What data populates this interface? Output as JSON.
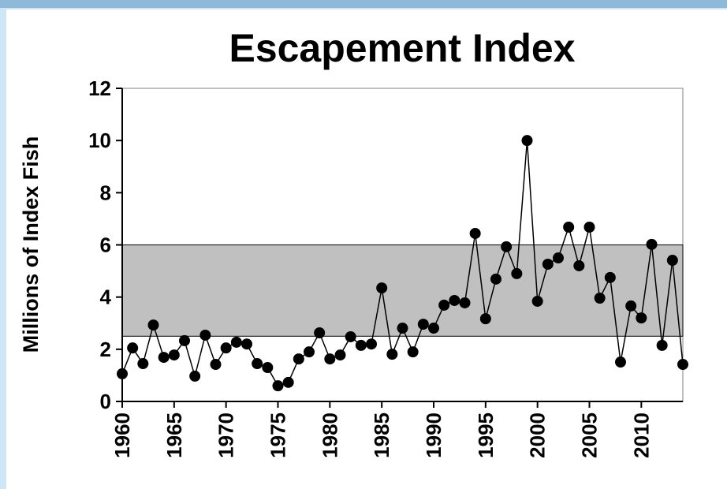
{
  "chart_data": {
    "type": "line",
    "title": "Escapement Index",
    "ylabel": "Millions of Index Fish",
    "x": [
      1960,
      1961,
      1962,
      1963,
      1964,
      1965,
      1966,
      1967,
      1968,
      1969,
      1970,
      1971,
      1972,
      1973,
      1974,
      1975,
      1976,
      1977,
      1978,
      1979,
      1980,
      1981,
      1982,
      1983,
      1984,
      1985,
      1986,
      1987,
      1988,
      1989,
      1990,
      1991,
      1992,
      1993,
      1994,
      1995,
      1996,
      1997,
      1998,
      1999,
      2000,
      2001,
      2002,
      2003,
      2004,
      2005,
      2006,
      2007,
      2008,
      2009,
      2010,
      2011,
      2012,
      2013,
      2014
    ],
    "values": [
      1.06,
      2.05,
      1.45,
      2.93,
      1.69,
      1.78,
      2.33,
      0.97,
      2.54,
      1.42,
      2.05,
      2.27,
      2.2,
      1.45,
      1.3,
      0.6,
      0.73,
      1.63,
      1.9,
      2.63,
      1.63,
      1.78,
      2.48,
      2.15,
      2.2,
      4.35,
      1.81,
      2.81,
      1.9,
      2.96,
      2.81,
      3.69,
      3.87,
      3.78,
      6.44,
      3.17,
      4.69,
      5.93,
      4.9,
      10.0,
      3.84,
      5.26,
      5.5,
      6.68,
      5.2,
      6.68,
      3.96,
      4.75,
      1.51,
      3.66,
      3.2,
      6.02,
      2.15,
      5.41,
      1.42
    ],
    "color": "#000000",
    "target_range": [
      2.5,
      6
    ],
    "target_color": "#c0c0c0",
    "xlim": [
      1960,
      2014
    ],
    "xticks": [
      1960,
      1965,
      1970,
      1975,
      1980,
      1985,
      1990,
      1995,
      2000,
      2005,
      2010
    ],
    "ylim": [
      0,
      12
    ],
    "yticks": [
      0,
      2,
      4,
      6,
      8,
      10,
      12
    ]
  }
}
